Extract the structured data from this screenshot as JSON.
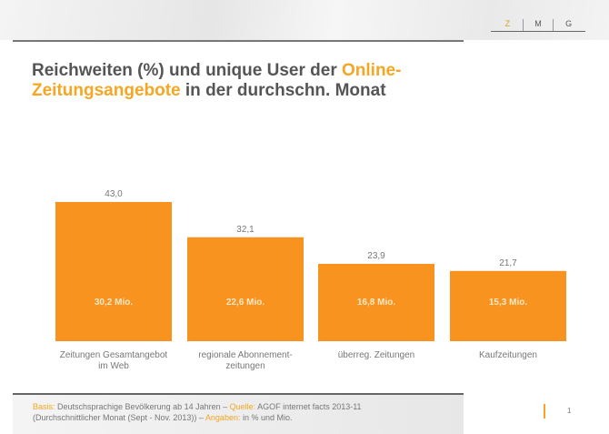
{
  "logo": {
    "letters": [
      "Z",
      "M",
      "G"
    ]
  },
  "title": {
    "part1": "Reichweiten (%) und unique User der ",
    "highlight1": "Online-",
    "highlight2": "Zeitungsangebote",
    "part2": " in der durchschn. Monat"
  },
  "chart_data": {
    "type": "bar",
    "categories": [
      [
        "Zeitungen Gesamtangebot",
        "im Web"
      ],
      [
        "regionale Abonnement-",
        "zeitungen"
      ],
      [
        "überreg. Zeitungen"
      ],
      [
        "Kaufzeitungen"
      ]
    ],
    "values": [
      43.0,
      32.1,
      23.9,
      21.7
    ],
    "value_labels": [
      "43,0",
      "32,1",
      "23,9",
      "21,7"
    ],
    "inner_labels": [
      "30,2 Mio.",
      "22,6 Mio.",
      "16,8 Mio.",
      "15,3 Mio."
    ],
    "ylim": [
      0,
      43
    ],
    "grid": false,
    "bar_color": "#f7931e"
  },
  "footer": {
    "basis_label": "Basis:",
    "basis": " Deutschsprachige Bevölkerung ab 14 Jahren – ",
    "quelle_label": "Quelle:",
    "quelle": " AGOF internet facts 2013-11",
    "line2": "(Durchschnittlicher Monat (Sept - Nov. 2013))  – ",
    "angaben_label": "Angaben:",
    "angaben": " in % und Mio.",
    "page": "1"
  }
}
